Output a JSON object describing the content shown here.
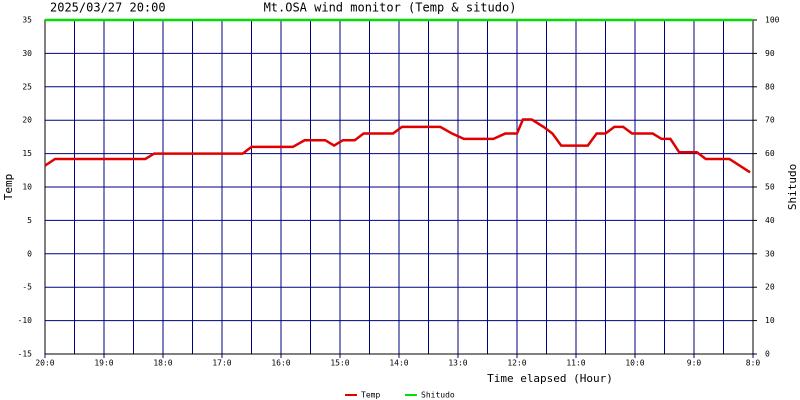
{
  "chart_data": {
    "type": "line",
    "date": "2025/03/27 20:00",
    "title": "Mt.OSA wind monitor (Temp & situdo)",
    "xlabel": "Time elapsed (Hour)",
    "ylabel": "Temp",
    "y2label": "Shitudo",
    "xlim": [
      0,
      12
    ],
    "xticks": [
      {
        "value": 0,
        "label": "20:0"
      },
      {
        "value": 1,
        "label": "19:0"
      },
      {
        "value": 2,
        "label": "18:0"
      },
      {
        "value": 3,
        "label": "17:0"
      },
      {
        "value": 4,
        "label": "16:0"
      },
      {
        "value": 5,
        "label": "15:0"
      },
      {
        "value": 6,
        "label": "14:0"
      },
      {
        "value": 7,
        "label": "13:0"
      },
      {
        "value": 8,
        "label": "12:0"
      },
      {
        "value": 9,
        "label": "11:0"
      },
      {
        "value": 10,
        "label": "10:0"
      },
      {
        "value": 11,
        "label": "9:0"
      },
      {
        "value": 12,
        "label": "8:0"
      }
    ],
    "x_minor_ticks": [
      0.5,
      1.5,
      2.5,
      3.5,
      4.5,
      5.5,
      6.5,
      7.5,
      8.5,
      9.5,
      10.5,
      11.5
    ],
    "ylim": [
      -15,
      35
    ],
    "yticks": [
      -15,
      -10,
      -5,
      0,
      5,
      10,
      15,
      20,
      25,
      30,
      35
    ],
    "y2lim": [
      0,
      100
    ],
    "y2ticks": [
      0,
      10,
      20,
      30,
      40,
      50,
      60,
      70,
      80,
      90,
      100
    ],
    "grid": true,
    "grid_color": "#000080",
    "legend": "bottom",
    "series": [
      {
        "name": "Temp",
        "color": "#e00000",
        "x": [
          0.0,
          0.17,
          1.7,
          1.85,
          3.35,
          3.5,
          4.2,
          4.4,
          4.75,
          4.9,
          5.05,
          5.25,
          5.4,
          5.9,
          6.05,
          6.7,
          6.9,
          7.1,
          7.6,
          7.8,
          8.0,
          8.1,
          8.25,
          8.45,
          8.6,
          8.75,
          9.2,
          9.35,
          9.5,
          9.65,
          9.8,
          9.95,
          10.3,
          10.45,
          10.6,
          10.75,
          11.05,
          11.2,
          11.6,
          11.95
        ],
        "values": [
          13.2,
          14.2,
          14.2,
          15,
          15,
          16,
          16,
          17,
          17,
          16.2,
          17,
          17,
          18,
          18,
          19,
          19,
          18,
          17.2,
          17.2,
          18,
          18,
          20.1,
          20.1,
          19,
          18,
          16.2,
          16.2,
          18,
          18,
          19,
          19,
          18,
          18,
          17.2,
          17.2,
          15.2,
          15.2,
          14.2,
          14.2,
          12.2
        ]
      },
      {
        "name": "Shitudo",
        "color": "#00e000",
        "axis": "y2",
        "x": [
          0,
          12
        ],
        "values": [
          100,
          100
        ]
      }
    ]
  }
}
